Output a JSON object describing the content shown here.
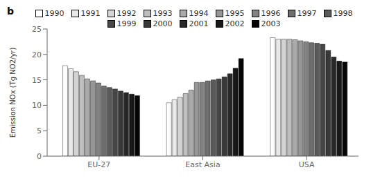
{
  "chart_data": {
    "type": "bar",
    "title": "b",
    "ylabel": "Emission NOx (Tg NO2/yr)",
    "categories": [
      "EU-27",
      "East Asia",
      "USA"
    ],
    "series": [
      {
        "name": "1990",
        "color": "#FFFFFF",
        "values": [
          17.8,
          10.5,
          23.3
        ]
      },
      {
        "name": "1991",
        "color": "#E8E8E8",
        "values": [
          17.2,
          11.1,
          23.0
        ]
      },
      {
        "name": "1992",
        "color": "#D4D4D4",
        "values": [
          16.6,
          11.6,
          23.0
        ]
      },
      {
        "name": "1993",
        "color": "#BEBEBE",
        "values": [
          15.9,
          12.3,
          23.0
        ]
      },
      {
        "name": "1994",
        "color": "#AAAAAA",
        "values": [
          15.2,
          13.0,
          22.9
        ]
      },
      {
        "name": "1995",
        "color": "#969696",
        "values": [
          14.8,
          14.5,
          22.7
        ]
      },
      {
        "name": "1996",
        "color": "#828282",
        "values": [
          14.4,
          14.5,
          22.5
        ]
      },
      {
        "name": "1997",
        "color": "#6E6E6E",
        "values": [
          13.8,
          14.8,
          22.3
        ]
      },
      {
        "name": "1998",
        "color": "#5A5A5A",
        "values": [
          13.5,
          15.0,
          22.2
        ]
      },
      {
        "name": "1999",
        "color": "#464646",
        "values": [
          13.2,
          15.2,
          22.0
        ]
      },
      {
        "name": "2000",
        "color": "#383838",
        "values": [
          12.8,
          15.6,
          20.8
        ]
      },
      {
        "name": "2001",
        "color": "#282828",
        "values": [
          12.5,
          16.2,
          19.5
        ]
      },
      {
        "name": "2002",
        "color": "#181818",
        "values": [
          12.2,
          17.3,
          18.7
        ]
      },
      {
        "name": "2003",
        "color": "#050505",
        "values": [
          11.9,
          19.2,
          18.5
        ]
      }
    ],
    "ylim": [
      0,
      25
    ],
    "yticks": [
      0,
      5,
      10,
      15,
      20,
      25
    ],
    "grid": false,
    "legend": "top"
  }
}
